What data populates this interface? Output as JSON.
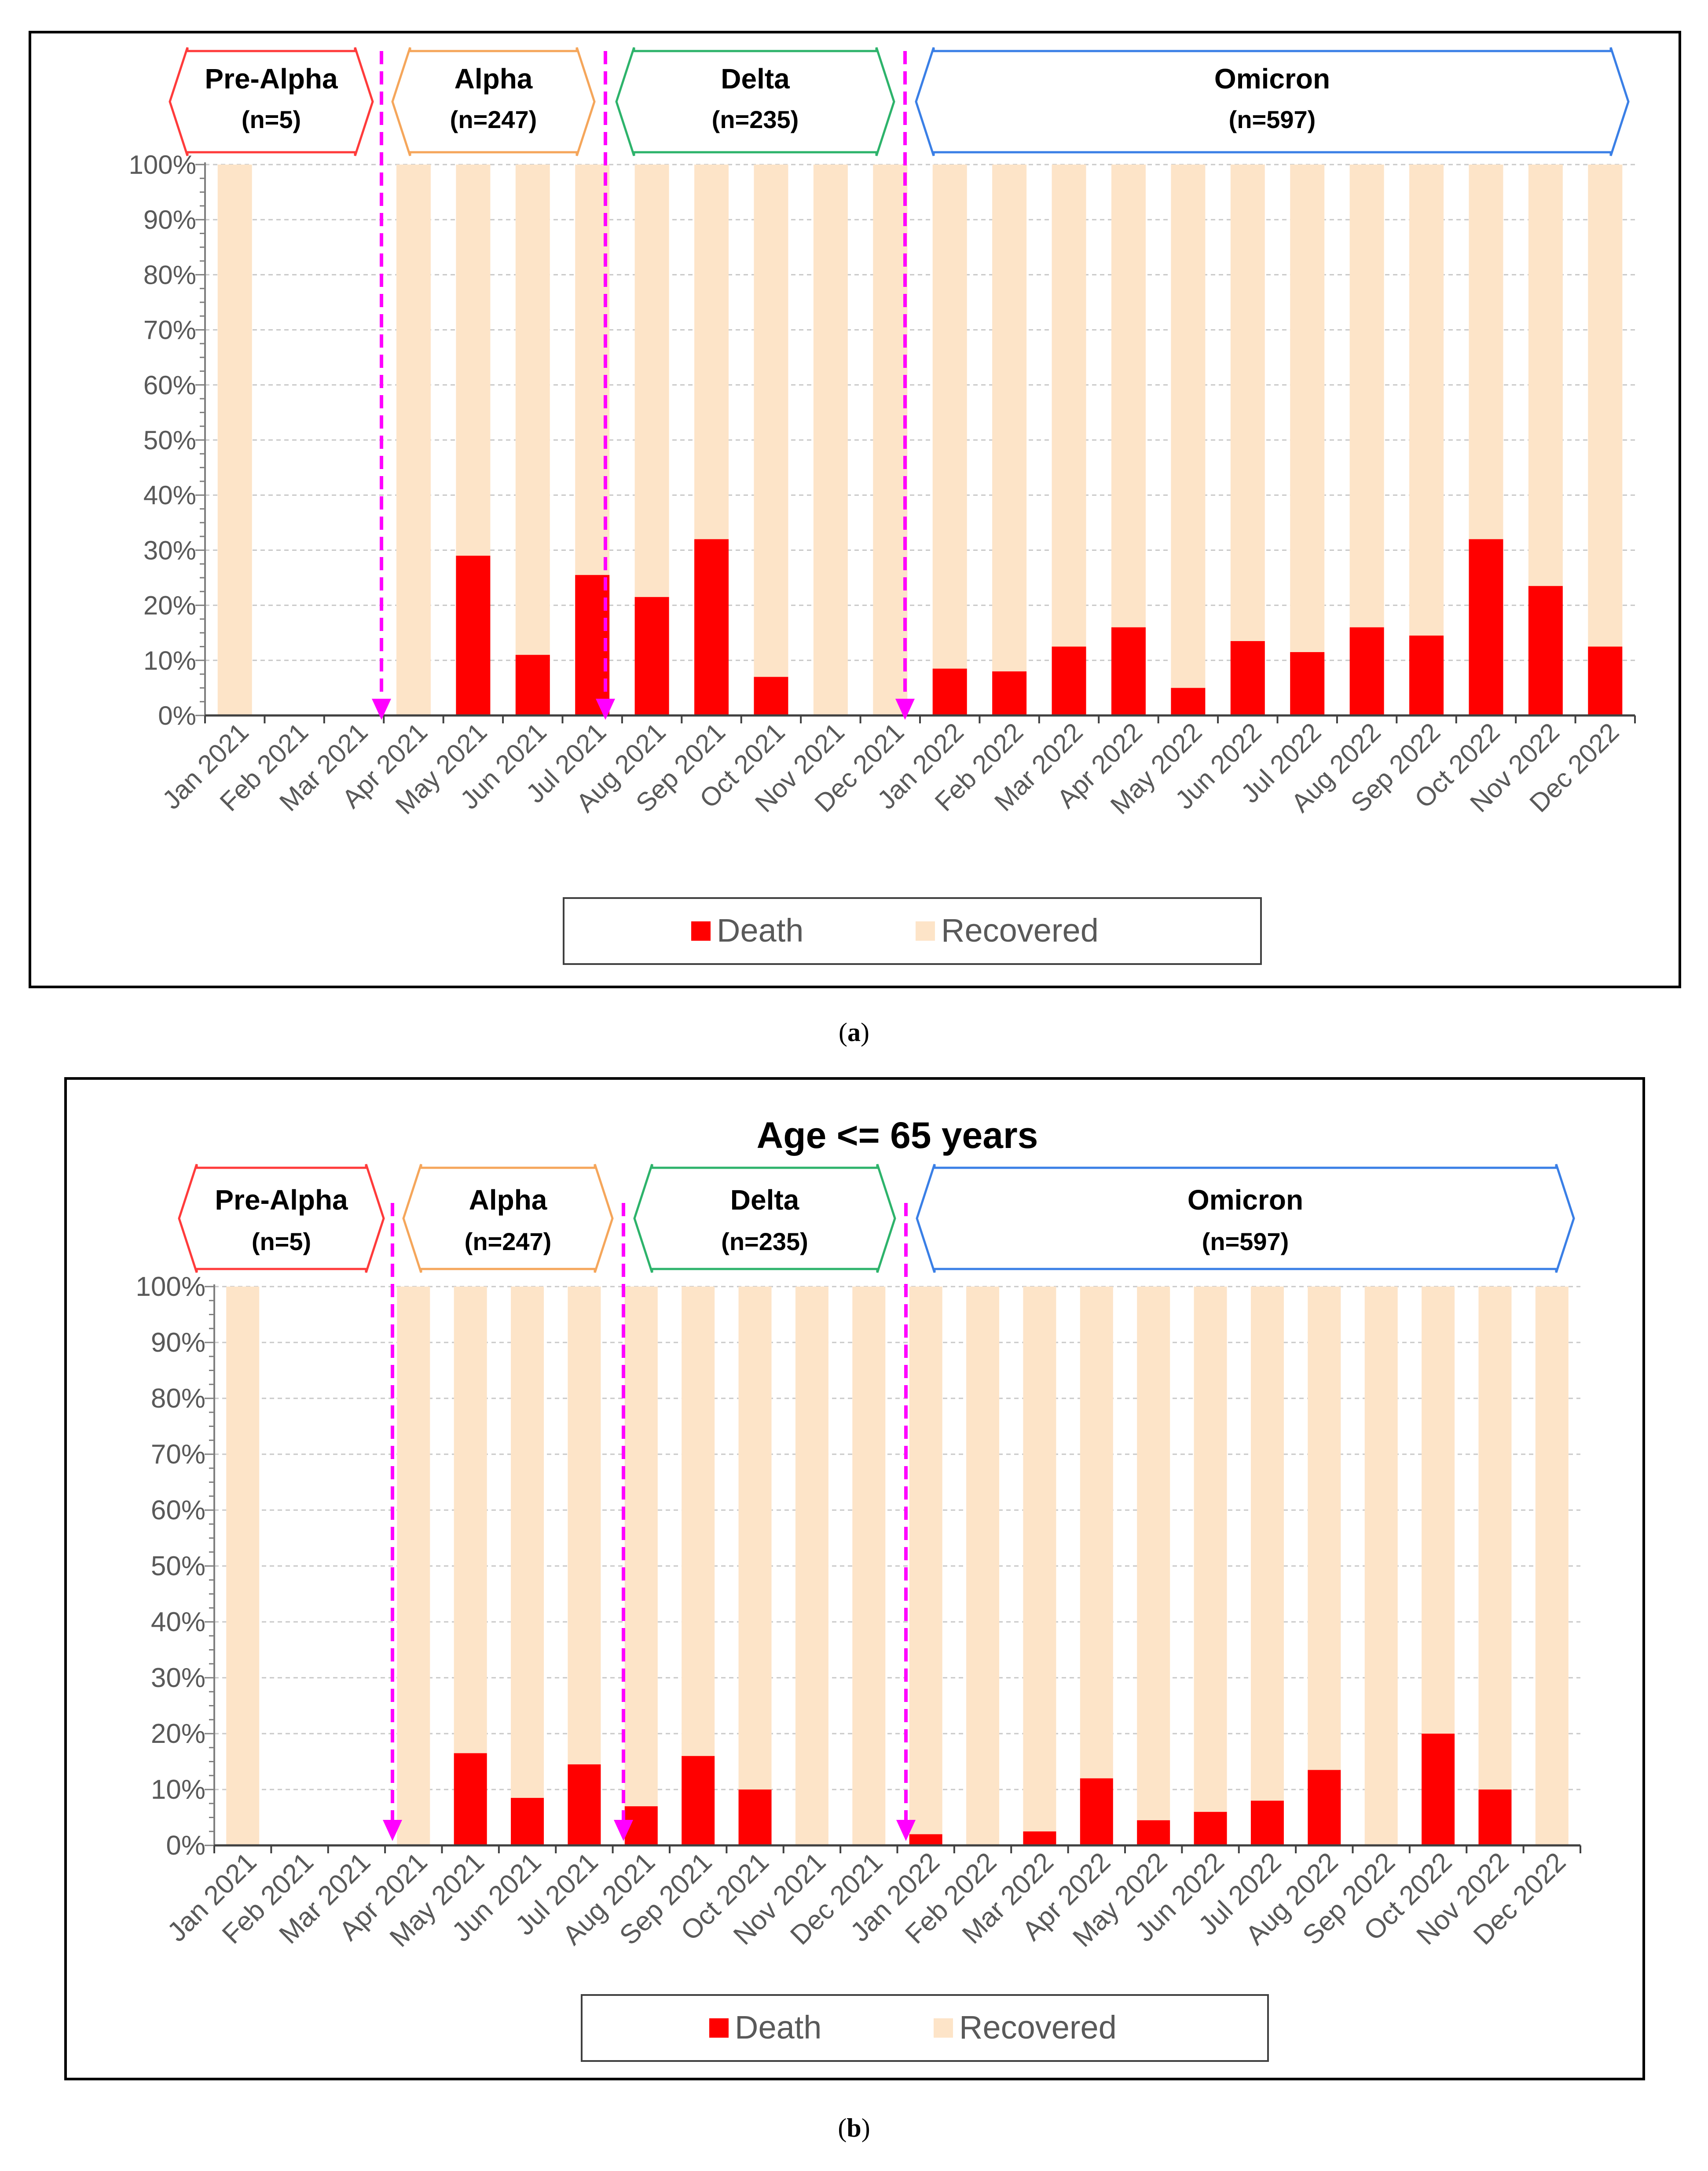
{
  "captions": {
    "a": "a",
    "b": "b"
  },
  "colors": {
    "death": "#ff0000",
    "recovered": "#fde4c8",
    "separator": "#ff00ff",
    "pre_alpha": "#ff3b3b",
    "alpha": "#f5a65b",
    "delta": "#2db36b",
    "omicron": "#3a7fe6",
    "grid": "#c8c8c8"
  },
  "chart_data": [
    {
      "panel": "a",
      "type": "bar",
      "stacked": true,
      "normalized": true,
      "title": "",
      "categories": [
        "Jan 2021",
        "Feb 2021",
        "Mar 2021",
        "Apr 2021",
        "May 2021",
        "Jun 2021",
        "Jul 2021",
        "Aug 2021",
        "Sep 2021",
        "Oct 2021",
        "Nov 2021",
        "Dec 2021",
        "Jan 2022",
        "Feb 2022",
        "Mar 2022",
        "Apr 2022",
        "May 2022",
        "Jun 2022",
        "Jul 2022",
        "Aug 2022",
        "Sep 2022",
        "Oct 2022",
        "Nov 2022",
        "Dec 2022"
      ],
      "series": [
        {
          "name": "Death",
          "values": [
            0,
            null,
            null,
            0,
            29,
            11,
            25.5,
            21.5,
            32,
            7,
            0,
            0,
            8.5,
            8,
            12.5,
            16,
            5,
            13.5,
            11.5,
            16,
            14.5,
            32,
            23.5,
            12.5
          ]
        },
        {
          "name": "Recovered",
          "values": [
            100,
            null,
            null,
            100,
            71,
            89,
            74.5,
            78.5,
            68,
            93,
            100,
            100,
            91.5,
            92,
            87.5,
            84,
            95,
            86.5,
            88.5,
            84,
            85.5,
            68,
            76.5,
            87.5
          ]
        }
      ],
      "ylim": [
        0,
        100
      ],
      "yticks": [
        "0%",
        "10%",
        "20%",
        "30%",
        "40%",
        "50%",
        "60%",
        "70%",
        "80%",
        "90%",
        "100%"
      ],
      "legend": [
        "Death",
        "Recovered"
      ],
      "legend_position": "bottom",
      "periods": [
        {
          "name": "Pre-Alpha",
          "n": "(n=5)",
          "start": 0,
          "end": 2
        },
        {
          "name": "Alpha",
          "n": "(n=247)",
          "start": 3,
          "end": 6
        },
        {
          "name": "Delta",
          "n": "(n=235)",
          "start": 7,
          "end": 11
        },
        {
          "name": "Omicron",
          "n": "(n=597)",
          "start": 12,
          "end": 23
        }
      ]
    },
    {
      "panel": "b",
      "type": "bar",
      "stacked": true,
      "normalized": true,
      "title": "Age <= 65 years",
      "categories": [
        "Jan 2021",
        "Feb 2021",
        "Mar 2021",
        "Apr 2021",
        "May 2021",
        "Jun 2021",
        "Jul 2021",
        "Aug 2021",
        "Sep 2021",
        "Oct 2021",
        "Nov 2021",
        "Dec 2021",
        "Jan 2022",
        "Feb 2022",
        "Mar 2022",
        "Apr 2022",
        "May 2022",
        "Jun 2022",
        "Jul 2022",
        "Aug 2022",
        "Sep 2022",
        "Oct 2022",
        "Nov 2022",
        "Dec 2022"
      ],
      "series": [
        {
          "name": "Death",
          "values": [
            0,
            null,
            null,
            0,
            16.5,
            8.5,
            14.5,
            7,
            16,
            10,
            0,
            0,
            2,
            0,
            2.5,
            12,
            4.5,
            6,
            8,
            13.5,
            0,
            20,
            10,
            0
          ]
        },
        {
          "name": "Recovered",
          "values": [
            100,
            null,
            null,
            100,
            83.5,
            91.5,
            85.5,
            93,
            84,
            90,
            100,
            100,
            98,
            100,
            97.5,
            88,
            95.5,
            94,
            92,
            86.5,
            100,
            80,
            90,
            100
          ]
        }
      ],
      "ylim": [
        0,
        100
      ],
      "yticks": [
        "0%",
        "10%",
        "20%",
        "30%",
        "40%",
        "50%",
        "60%",
        "70%",
        "80%",
        "90%",
        "100%"
      ],
      "legend": [
        "Death",
        "Recovered"
      ],
      "legend_position": "bottom",
      "periods": [
        {
          "name": "Pre-Alpha",
          "n": "(n=5)",
          "start": 0,
          "end": 2
        },
        {
          "name": "Alpha",
          "n": "(n=247)",
          "start": 3,
          "end": 6
        },
        {
          "name": "Delta",
          "n": "(n=235)",
          "start": 7,
          "end": 11
        },
        {
          "name": "Omicron",
          "n": "(n=597)",
          "start": 12,
          "end": 23
        }
      ]
    }
  ]
}
